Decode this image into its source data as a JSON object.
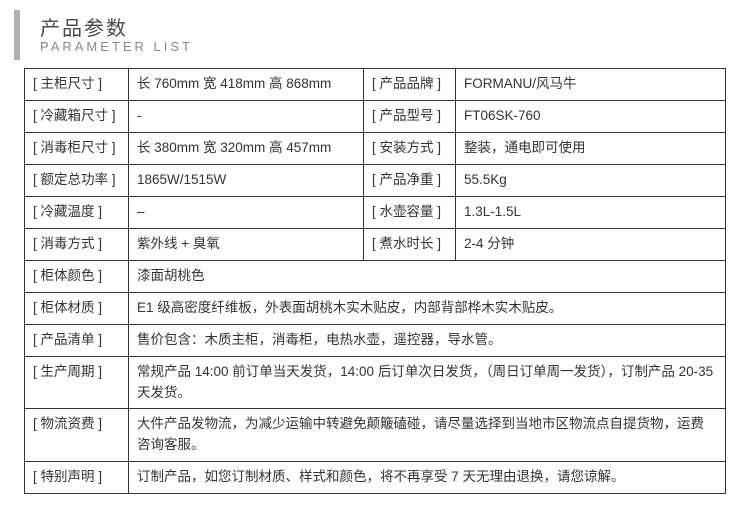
{
  "header": {
    "title_cn": "产品参数",
    "title_en": "PARAMETER LIST"
  },
  "rows_top": [
    {
      "l1": "[ 主柜尺寸 ]",
      "v1": "长 760mm 宽 418mm 高 868mm",
      "l2": "[ 产品品牌 ]",
      "v2": "FORMANU/风马牛"
    },
    {
      "l1": "[ 冷藏箱尺寸 ]",
      "v1": "-",
      "l2": "[ 产品型号 ]",
      "v2": "FT06SK-760"
    },
    {
      "l1": "[ 消毒柜尺寸 ]",
      "v1": "长 380mm 宽 320mm 高 457mm",
      "l2": "[ 安装方式 ]",
      "v2": "整装，通电即可使用"
    },
    {
      "l1": "[ 额定总功率 ]",
      "v1": "1865W/1515W",
      "l2": "[ 产品净重 ]",
      "v2": "55.5Kg"
    },
    {
      "l1": "[ 冷藏温度 ]",
      "v1": "–",
      "l2": "[ 水壶容量 ]",
      "v2": "1.3L-1.5L"
    },
    {
      "l1": "[ 消毒方式 ]",
      "v1": "紫外线 + 臭氧",
      "l2": "[ 煮水时长 ]",
      "v2": "2-4 分钟"
    }
  ],
  "rows_bottom": [
    {
      "l": "[ 柜体颜色 ]",
      "v": "漆面胡桃色"
    },
    {
      "l": "[ 柜体材质 ]",
      "v": "E1 级高密度纤维板，外表面胡桃木实木贴皮，内部背部桦木实木贴皮。"
    },
    {
      "l": "[ 产品清单 ]",
      "v": "售价包含：木质主柜，消毒柜，电热水壶，遥控器，导水管。"
    },
    {
      "l": "[ 生产周期 ]",
      "v": "常规产品 14:00 前订单当天发货，14:00 后订单次日发货，（周日订单周一发货），订制产品 20-35 天发货。"
    },
    {
      "l": "[ 物流资费 ]",
      "v": "大件产品发物流，为减少运输中转避免颠簸磕碰，请尽量选择到当地市区物流点自提货物，运费咨询客服。"
    },
    {
      "l": "[ 特别声明 ]",
      "v": "订制产品，如您订制材质、样式和颜色，将不再享受 7 天无理由退换，请您谅解。"
    }
  ]
}
